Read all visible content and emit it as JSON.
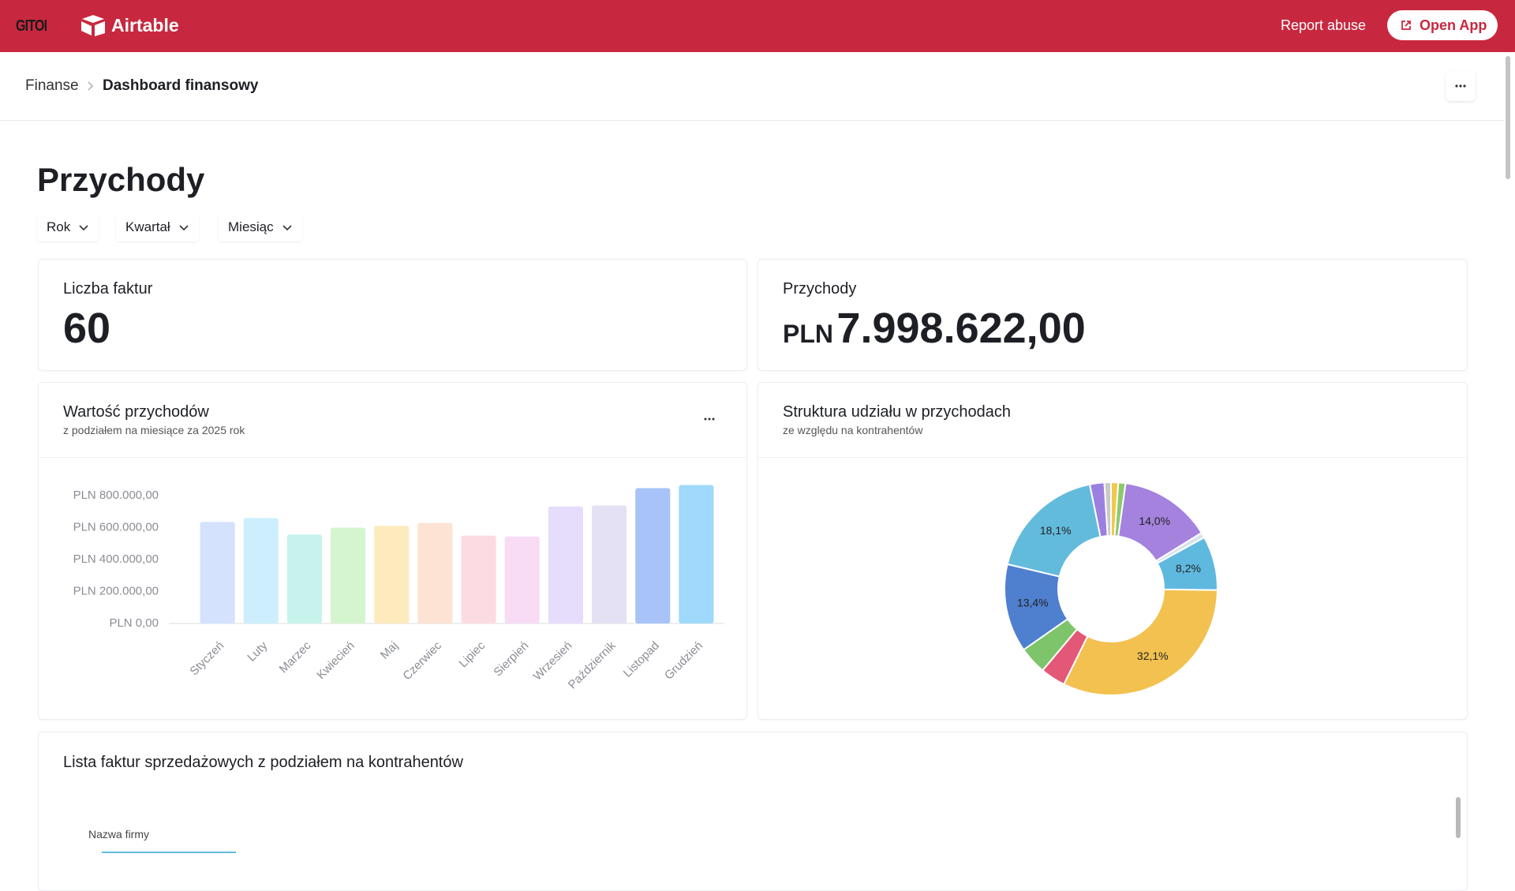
{
  "header": {
    "brand": "GITOI",
    "app": "Airtable",
    "report": "Report abuse",
    "open": "Open App"
  },
  "breadcrumb": [
    "Finanse",
    "Dashboard finansowy"
  ],
  "title": "Przychody",
  "filters": [
    "Rok",
    "Kwartał",
    "Miesiąc"
  ],
  "kpis": [
    {
      "label": "Liczba faktur",
      "value": "60"
    },
    {
      "label": "Przychody",
      "prefix": "PLN",
      "value": "7.998.622,00"
    }
  ],
  "chart_data": [
    {
      "type": "bar",
      "title": "Wartość przychodów",
      "subtitle": "z podziałem na miesiące za 2025 rok",
      "categories": [
        "Styczeń",
        "Luty",
        "Marzec",
        "Kwiecień",
        "Maj",
        "Czerwiec",
        "Lipiec",
        "Sierpień",
        "Wrzesień",
        "Październik",
        "Listopad",
        "Grudzień"
      ],
      "values": [
        636000,
        660000,
        557000,
        600000,
        612000,
        630000,
        551000,
        545000,
        733000,
        739000,
        848000,
        867000
      ],
      "colors": [
        "#d4e2fe",
        "#cdeefc",
        "#c8f3ec",
        "#d5f5cf",
        "#fdebbd",
        "#fde3d4",
        "#fcdbe2",
        "#f8dcf6",
        "#e6dcfc",
        "#e3e1f3",
        "#a7c3f8",
        "#9fd9fb"
      ],
      "ylim": [
        0,
        900000
      ],
      "yticks": [
        {
          "value": 0,
          "label": "PLN 0,00"
        },
        {
          "value": 200000,
          "label": "PLN 200.000,00"
        },
        {
          "value": 400000,
          "label": "PLN 400.000,00"
        },
        {
          "value": 600000,
          "label": "PLN 600.000,00"
        },
        {
          "value": 800000,
          "label": "PLN 800.000,00"
        }
      ],
      "grid": false
    },
    {
      "type": "pie",
      "title": "Struktura udziału w przychodach",
      "subtitle": "ze względu na kontrahentów",
      "values": [
        1.1,
        1.1,
        14.0,
        0.8,
        8.2,
        32.1,
        3.8,
        4.2,
        13.4,
        18.1,
        2.2,
        1.0
      ],
      "value_labels": [
        null,
        null,
        "14,0%",
        null,
        "8,2%",
        "32,1%",
        null,
        null,
        "13,4%",
        "18,1%",
        null,
        null
      ],
      "colors": [
        "#f1c84f",
        "#8cc96d",
        "#a482de",
        "#d7e2ee",
        "#5fb9df",
        "#f2c14f",
        "#e35777",
        "#7dc46b",
        "#4f7fcf",
        "#63bbdc",
        "#9b80e0",
        "#c9c9c9"
      ]
    }
  ],
  "list": {
    "title": "Lista faktur sprzedażowych z podziałem na kontrahentów",
    "columns": [
      "Nazwa firmy"
    ]
  }
}
